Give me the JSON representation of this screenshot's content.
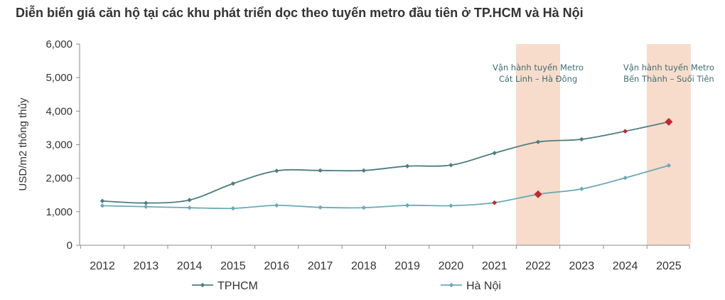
{
  "title": "Diễn biến giá căn hộ tại các khu phát triển dọc theo tuyến metro đầu tiên ở TP.HCM và Hà Nội",
  "chart_data": {
    "type": "line",
    "title": "Diễn biến giá căn hộ tại các khu phát triển dọc theo tuyến metro đầu tiên ở TP.HCM và Hà Nội",
    "ylabel": "USD/m2 thông thủy",
    "xlabel": "",
    "ylim": [
      0,
      6000
    ],
    "yticks": [
      0,
      1000,
      2000,
      3000,
      4000,
      5000,
      6000
    ],
    "ytick_labels": [
      "0",
      "1,000",
      "2,000",
      "3,000",
      "4,000",
      "5,000",
      "6,000"
    ],
    "categories": [
      "2012",
      "2013",
      "2014",
      "2015",
      "2016",
      "2017",
      "2018",
      "2019",
      "2020",
      "2021",
      "2022",
      "2023",
      "2024",
      "2025"
    ],
    "series": [
      {
        "name": "TPHCM",
        "color": "#4e7e7e",
        "values": [
          1320,
          1260,
          1350,
          1840,
          2220,
          2230,
          2230,
          2360,
          2390,
          2750,
          3080,
          3160,
          3400,
          3680
        ],
        "highlight_indices": [
          12,
          13
        ]
      },
      {
        "name": "Hà Nội",
        "color": "#6aaab8",
        "values": [
          1180,
          1150,
          1120,
          1100,
          1190,
          1130,
          1120,
          1190,
          1180,
          1270,
          1520,
          1680,
          2010,
          2380
        ],
        "highlight_indices": [
          9,
          10
        ]
      }
    ],
    "highlight_color": "#c0282d",
    "shaded_regions": [
      {
        "category": "2022",
        "label_line1": "Vận hành tuyến Metro",
        "label_line2": "Cát Linh – Hà Đông",
        "color": "#f8dccb"
      },
      {
        "category": "2025",
        "label_line1": "Vận hành tuyến Metro",
        "label_line2": "Bến Thành – Suối Tiên",
        "color": "#f8dccb"
      }
    ],
    "grid": false,
    "legend_position": "bottom"
  }
}
